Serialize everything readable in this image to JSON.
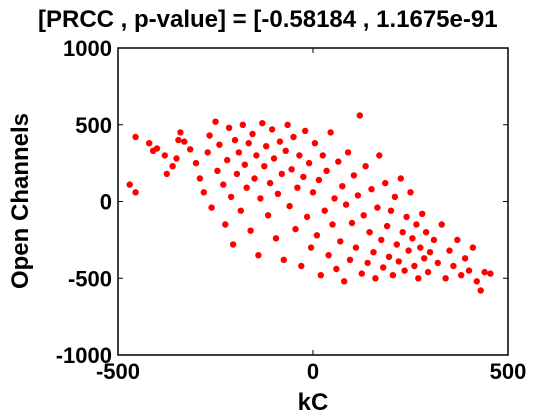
{
  "chart_data": {
    "type": "scatter",
    "title": "[PRCC , p-value] = [-0.58184 , 1.1675e-91",
    "xlabel": "kC",
    "ylabel": "Open Channels",
    "xlim": [
      -500,
      500
    ],
    "ylim": [
      -1000,
      1000
    ],
    "xticks": [
      -500,
      0,
      500
    ],
    "yticks": [
      -1000,
      -500,
      0,
      500,
      1000
    ],
    "grid": false,
    "marker_color": "#ff0000",
    "marker": "filled-circle",
    "series": [
      {
        "points": [
          [
            -470,
            110
          ],
          [
            -455,
            60
          ],
          [
            -455,
            420
          ],
          [
            -420,
            380
          ],
          [
            -410,
            330
          ],
          [
            -400,
            345
          ],
          [
            -380,
            300
          ],
          [
            -375,
            180
          ],
          [
            -360,
            230
          ],
          [
            -350,
            280
          ],
          [
            -345,
            400
          ],
          [
            -340,
            450
          ],
          [
            -330,
            390
          ],
          [
            -315,
            340
          ],
          [
            -300,
            250
          ],
          [
            -290,
            150
          ],
          [
            -280,
            60
          ],
          [
            -270,
            320
          ],
          [
            -265,
            430
          ],
          [
            -260,
            -40
          ],
          [
            -250,
            520
          ],
          [
            -245,
            200
          ],
          [
            -240,
            370
          ],
          [
            -230,
            110
          ],
          [
            -225,
            -150
          ],
          [
            -220,
            270
          ],
          [
            -215,
            480
          ],
          [
            -210,
            30
          ],
          [
            -205,
            -280
          ],
          [
            -200,
            400
          ],
          [
            -195,
            180
          ],
          [
            -190,
            320
          ],
          [
            -185,
            -60
          ],
          [
            -180,
            500
          ],
          [
            -175,
            240
          ],
          [
            -170,
            90
          ],
          [
            -165,
            380
          ],
          [
            -160,
            -190
          ],
          [
            -155,
            440
          ],
          [
            -150,
            150
          ],
          [
            -145,
            300
          ],
          [
            -140,
            -350
          ],
          [
            -135,
            20
          ],
          [
            -130,
            510
          ],
          [
            -125,
            230
          ],
          [
            -120,
            360
          ],
          [
            -115,
            -90
          ],
          [
            -110,
            120
          ],
          [
            -105,
            470
          ],
          [
            -100,
            280
          ],
          [
            -95,
            -240
          ],
          [
            -90,
            50
          ],
          [
            -85,
            390
          ],
          [
            -80,
            180
          ],
          [
            -75,
            -380
          ],
          [
            -70,
            330
          ],
          [
            -65,
            500
          ],
          [
            -60,
            -30
          ],
          [
            -55,
            210
          ],
          [
            -50,
            420
          ],
          [
            -45,
            -180
          ],
          [
            -40,
            90
          ],
          [
            -35,
            300
          ],
          [
            -30,
            -420
          ],
          [
            -25,
            160
          ],
          [
            -20,
            460
          ],
          [
            -15,
            -100
          ],
          [
            -10,
            250
          ],
          [
            -5,
            -300
          ],
          [
            0,
            60
          ],
          [
            5,
            380
          ],
          [
            10,
            -220
          ],
          [
            15,
            140
          ],
          [
            20,
            -480
          ],
          [
            25,
            300
          ],
          [
            30,
            -60
          ],
          [
            35,
            200
          ],
          [
            40,
            -350
          ],
          [
            45,
            450
          ],
          [
            50,
            -150
          ],
          [
            55,
            20
          ],
          [
            60,
            -440
          ],
          [
            65,
            260
          ],
          [
            70,
            -260
          ],
          [
            75,
            100
          ],
          [
            80,
            -520
          ],
          [
            85,
            -20
          ],
          [
            90,
            320
          ],
          [
            95,
            -380
          ],
          [
            100,
            -140
          ],
          [
            105,
            170
          ],
          [
            110,
            -300
          ],
          [
            115,
            40
          ],
          [
            120,
            560
          ],
          [
            125,
            -470
          ],
          [
            130,
            -90
          ],
          [
            135,
            230
          ],
          [
            140,
            -400
          ],
          [
            145,
            -200
          ],
          [
            150,
            80
          ],
          [
            155,
            -330
          ],
          [
            160,
            -500
          ],
          [
            165,
            -40
          ],
          [
            170,
            300
          ],
          [
            175,
            -250
          ],
          [
            180,
            -430
          ],
          [
            185,
            120
          ],
          [
            190,
            -160
          ],
          [
            195,
            -360
          ],
          [
            200,
            -60
          ],
          [
            205,
            -480
          ],
          [
            210,
            30
          ],
          [
            215,
            -280
          ],
          [
            220,
            -390
          ],
          [
            225,
            150
          ],
          [
            230,
            -200
          ],
          [
            235,
            -450
          ],
          [
            240,
            -100
          ],
          [
            245,
            -320
          ],
          [
            250,
            60
          ],
          [
            255,
            -240
          ],
          [
            260,
            -420
          ],
          [
            265,
            -150
          ],
          [
            270,
            -500
          ],
          [
            275,
            -300
          ],
          [
            280,
            -80
          ],
          [
            285,
            -370
          ],
          [
            290,
            -200
          ],
          [
            295,
            -460
          ],
          [
            300,
            -330
          ],
          [
            310,
            -250
          ],
          [
            320,
            -400
          ],
          [
            330,
            -150
          ],
          [
            340,
            -500
          ],
          [
            350,
            -320
          ],
          [
            360,
            -420
          ],
          [
            370,
            -250
          ],
          [
            380,
            -480
          ],
          [
            390,
            -370
          ],
          [
            400,
            -450
          ],
          [
            410,
            -300
          ],
          [
            420,
            -520
          ],
          [
            430,
            -580
          ],
          [
            440,
            -460
          ],
          [
            455,
            -470
          ]
        ]
      }
    ]
  }
}
